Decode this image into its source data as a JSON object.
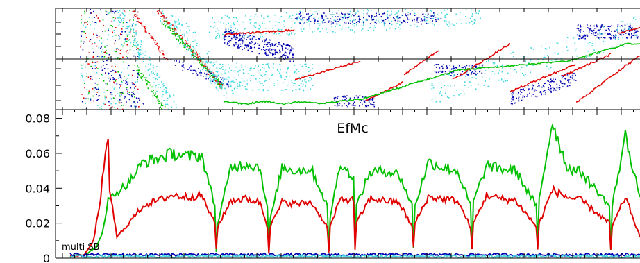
{
  "chart_data": [
    {
      "type": "scatter",
      "panel": "top-phase-scatter",
      "title": "",
      "xlabel": "",
      "ylabel": "",
      "grid": false,
      "colors": {
        "red": "#e00000",
        "green": "#00c000",
        "blue": "#0000b0",
        "cyan": "#40d8e0"
      }
    },
    {
      "type": "line",
      "title": "EfMc",
      "annotation": "multi SB",
      "xlabel": "",
      "ylabel": "",
      "ylim": [
        0,
        0.085
      ],
      "yticks": [
        0,
        0.02,
        0.04,
        0.06,
        0.08
      ],
      "ytick_labels": [
        "0",
        "0.02",
        "0.04",
        "0.06",
        "0.08"
      ],
      "xlim": [
        0,
        40
      ],
      "grid": false,
      "dip_x": [
        20.5,
        24.5,
        28.5,
        33.0,
        38.0
      ],
      "series": [
        {
          "color": "#00c000",
          "x": [
            1.0,
            2.0,
            2.8,
            3.2,
            3.6,
            4.2,
            5.0,
            6.0,
            7.0,
            8.0,
            9.0,
            10.0,
            10.9,
            11.0,
            11.1,
            12.0,
            13.0,
            14.0,
            14.5,
            14.6,
            14.7,
            15.5,
            16.5,
            17.5,
            18.6,
            18.7,
            18.8,
            19.5,
            20.4,
            20.5,
            20.6,
            21.5,
            22.5,
            23.5,
            24.4,
            24.5,
            24.6,
            25.5,
            26.5,
            27.5,
            28.4,
            28.5,
            28.6,
            29.5,
            30.5,
            31.5,
            32.9,
            33.0,
            33.1,
            34.0,
            35.0,
            36.0,
            37.9,
            38.0,
            38.1,
            39.0,
            40.0
          ],
          "y": [
            0.001,
            0.002,
            0.006,
            0.015,
            0.033,
            0.038,
            0.043,
            0.055,
            0.057,
            0.06,
            0.058,
            0.059,
            0.03,
            0.004,
            0.02,
            0.052,
            0.054,
            0.052,
            0.028,
            0.004,
            0.022,
            0.052,
            0.05,
            0.051,
            0.03,
            0.004,
            0.024,
            0.055,
            0.045,
            0.01,
            0.03,
            0.049,
            0.05,
            0.048,
            0.03,
            0.006,
            0.03,
            0.055,
            0.052,
            0.05,
            0.03,
            0.005,
            0.032,
            0.053,
            0.051,
            0.05,
            0.03,
            0.007,
            0.034,
            0.078,
            0.052,
            0.049,
            0.03,
            0.005,
            0.03,
            0.07,
            0.035
          ]
        },
        {
          "color": "#e00000",
          "x": [
            1.0,
            2.0,
            2.6,
            3.0,
            3.4,
            3.6,
            3.7,
            4.2,
            5.0,
            6.0,
            7.0,
            8.0,
            9.0,
            10.0,
            10.9,
            11.0,
            11.1,
            12.0,
            13.0,
            14.0,
            14.5,
            14.6,
            14.7,
            15.5,
            16.5,
            17.5,
            18.6,
            18.7,
            18.8,
            19.5,
            20.4,
            20.5,
            20.6,
            21.5,
            22.5,
            23.5,
            24.4,
            24.5,
            24.6,
            25.5,
            26.5,
            27.5,
            28.4,
            28.5,
            28.6,
            29.5,
            30.5,
            31.5,
            32.9,
            33.0,
            33.1,
            34.0,
            35.0,
            36.0,
            37.9,
            38.0,
            38.1,
            39.0,
            40.0
          ],
          "y": [
            0.001,
            0.002,
            0.01,
            0.03,
            0.058,
            0.065,
            0.04,
            0.012,
            0.02,
            0.03,
            0.033,
            0.036,
            0.035,
            0.036,
            0.02,
            0.005,
            0.018,
            0.033,
            0.034,
            0.032,
            0.018,
            0.003,
            0.018,
            0.032,
            0.031,
            0.032,
            0.018,
            0.003,
            0.018,
            0.034,
            0.033,
            0.005,
            0.02,
            0.034,
            0.033,
            0.032,
            0.018,
            0.006,
            0.02,
            0.035,
            0.034,
            0.033,
            0.018,
            0.005,
            0.02,
            0.036,
            0.034,
            0.033,
            0.018,
            0.005,
            0.02,
            0.039,
            0.035,
            0.033,
            0.02,
            0.005,
            0.018,
            0.035,
            0.012
          ]
        },
        {
          "color": "#0000b0",
          "x": [
            1.0,
            40.0
          ],
          "y": [
            0.002,
            0.002
          ]
        },
        {
          "color": "#40d8e0",
          "x": [
            1.0,
            40.0
          ],
          "y": [
            0.001,
            0.001
          ]
        }
      ]
    }
  ]
}
